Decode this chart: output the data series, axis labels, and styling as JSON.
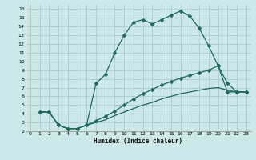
{
  "xlabel": "Humidex (Indice chaleur)",
  "background_color": "#cce8e8",
  "grid_color": "#aacccc",
  "line_color": "#1a6b5a",
  "xlim": [
    -0.5,
    23.5
  ],
  "ylim": [
    2,
    16.5
  ],
  "xticks": [
    0,
    1,
    2,
    3,
    4,
    5,
    6,
    7,
    8,
    9,
    10,
    11,
    12,
    13,
    14,
    15,
    16,
    17,
    18,
    19,
    20,
    21,
    22,
    23
  ],
  "yticks": [
    2,
    3,
    4,
    5,
    6,
    7,
    8,
    9,
    10,
    11,
    12,
    13,
    14,
    15,
    16
  ],
  "curve1_x": [
    1,
    2,
    3,
    4,
    5,
    6,
    7,
    8,
    9,
    10,
    11,
    12,
    13,
    14,
    15,
    16,
    17,
    18,
    19,
    20,
    21,
    22,
    23
  ],
  "curve1_y": [
    4.2,
    4.2,
    2.7,
    2.3,
    2.3,
    2.7,
    7.5,
    8.5,
    11.0,
    13.0,
    14.5,
    14.8,
    14.3,
    14.8,
    15.3,
    15.8,
    15.2,
    13.8,
    11.8,
    9.5,
    6.5,
    6.5,
    6.5
  ],
  "curve2_x": [
    1,
    2,
    3,
    4,
    5,
    6,
    7,
    8,
    9,
    10,
    11,
    12,
    13,
    14,
    15,
    16,
    17,
    18,
    19,
    20,
    21,
    22,
    23
  ],
  "curve2_y": [
    4.2,
    4.2,
    2.7,
    2.3,
    2.3,
    2.7,
    3.2,
    3.7,
    4.3,
    5.0,
    5.7,
    6.3,
    6.8,
    7.3,
    7.7,
    8.1,
    8.4,
    8.7,
    9.0,
    9.5,
    7.5,
    6.5,
    6.5
  ],
  "curve3_x": [
    1,
    2,
    3,
    4,
    5,
    6,
    7,
    8,
    9,
    10,
    11,
    12,
    13,
    14,
    15,
    16,
    17,
    18,
    19,
    20,
    21,
    22,
    23
  ],
  "curve3_y": [
    4.2,
    4.2,
    2.7,
    2.3,
    2.3,
    2.7,
    3.0,
    3.3,
    3.8,
    4.2,
    4.6,
    5.0,
    5.3,
    5.7,
    6.0,
    6.3,
    6.5,
    6.7,
    6.9,
    7.0,
    6.7,
    6.5,
    6.5
  ],
  "markersize": 2.5,
  "linewidth": 0.9
}
